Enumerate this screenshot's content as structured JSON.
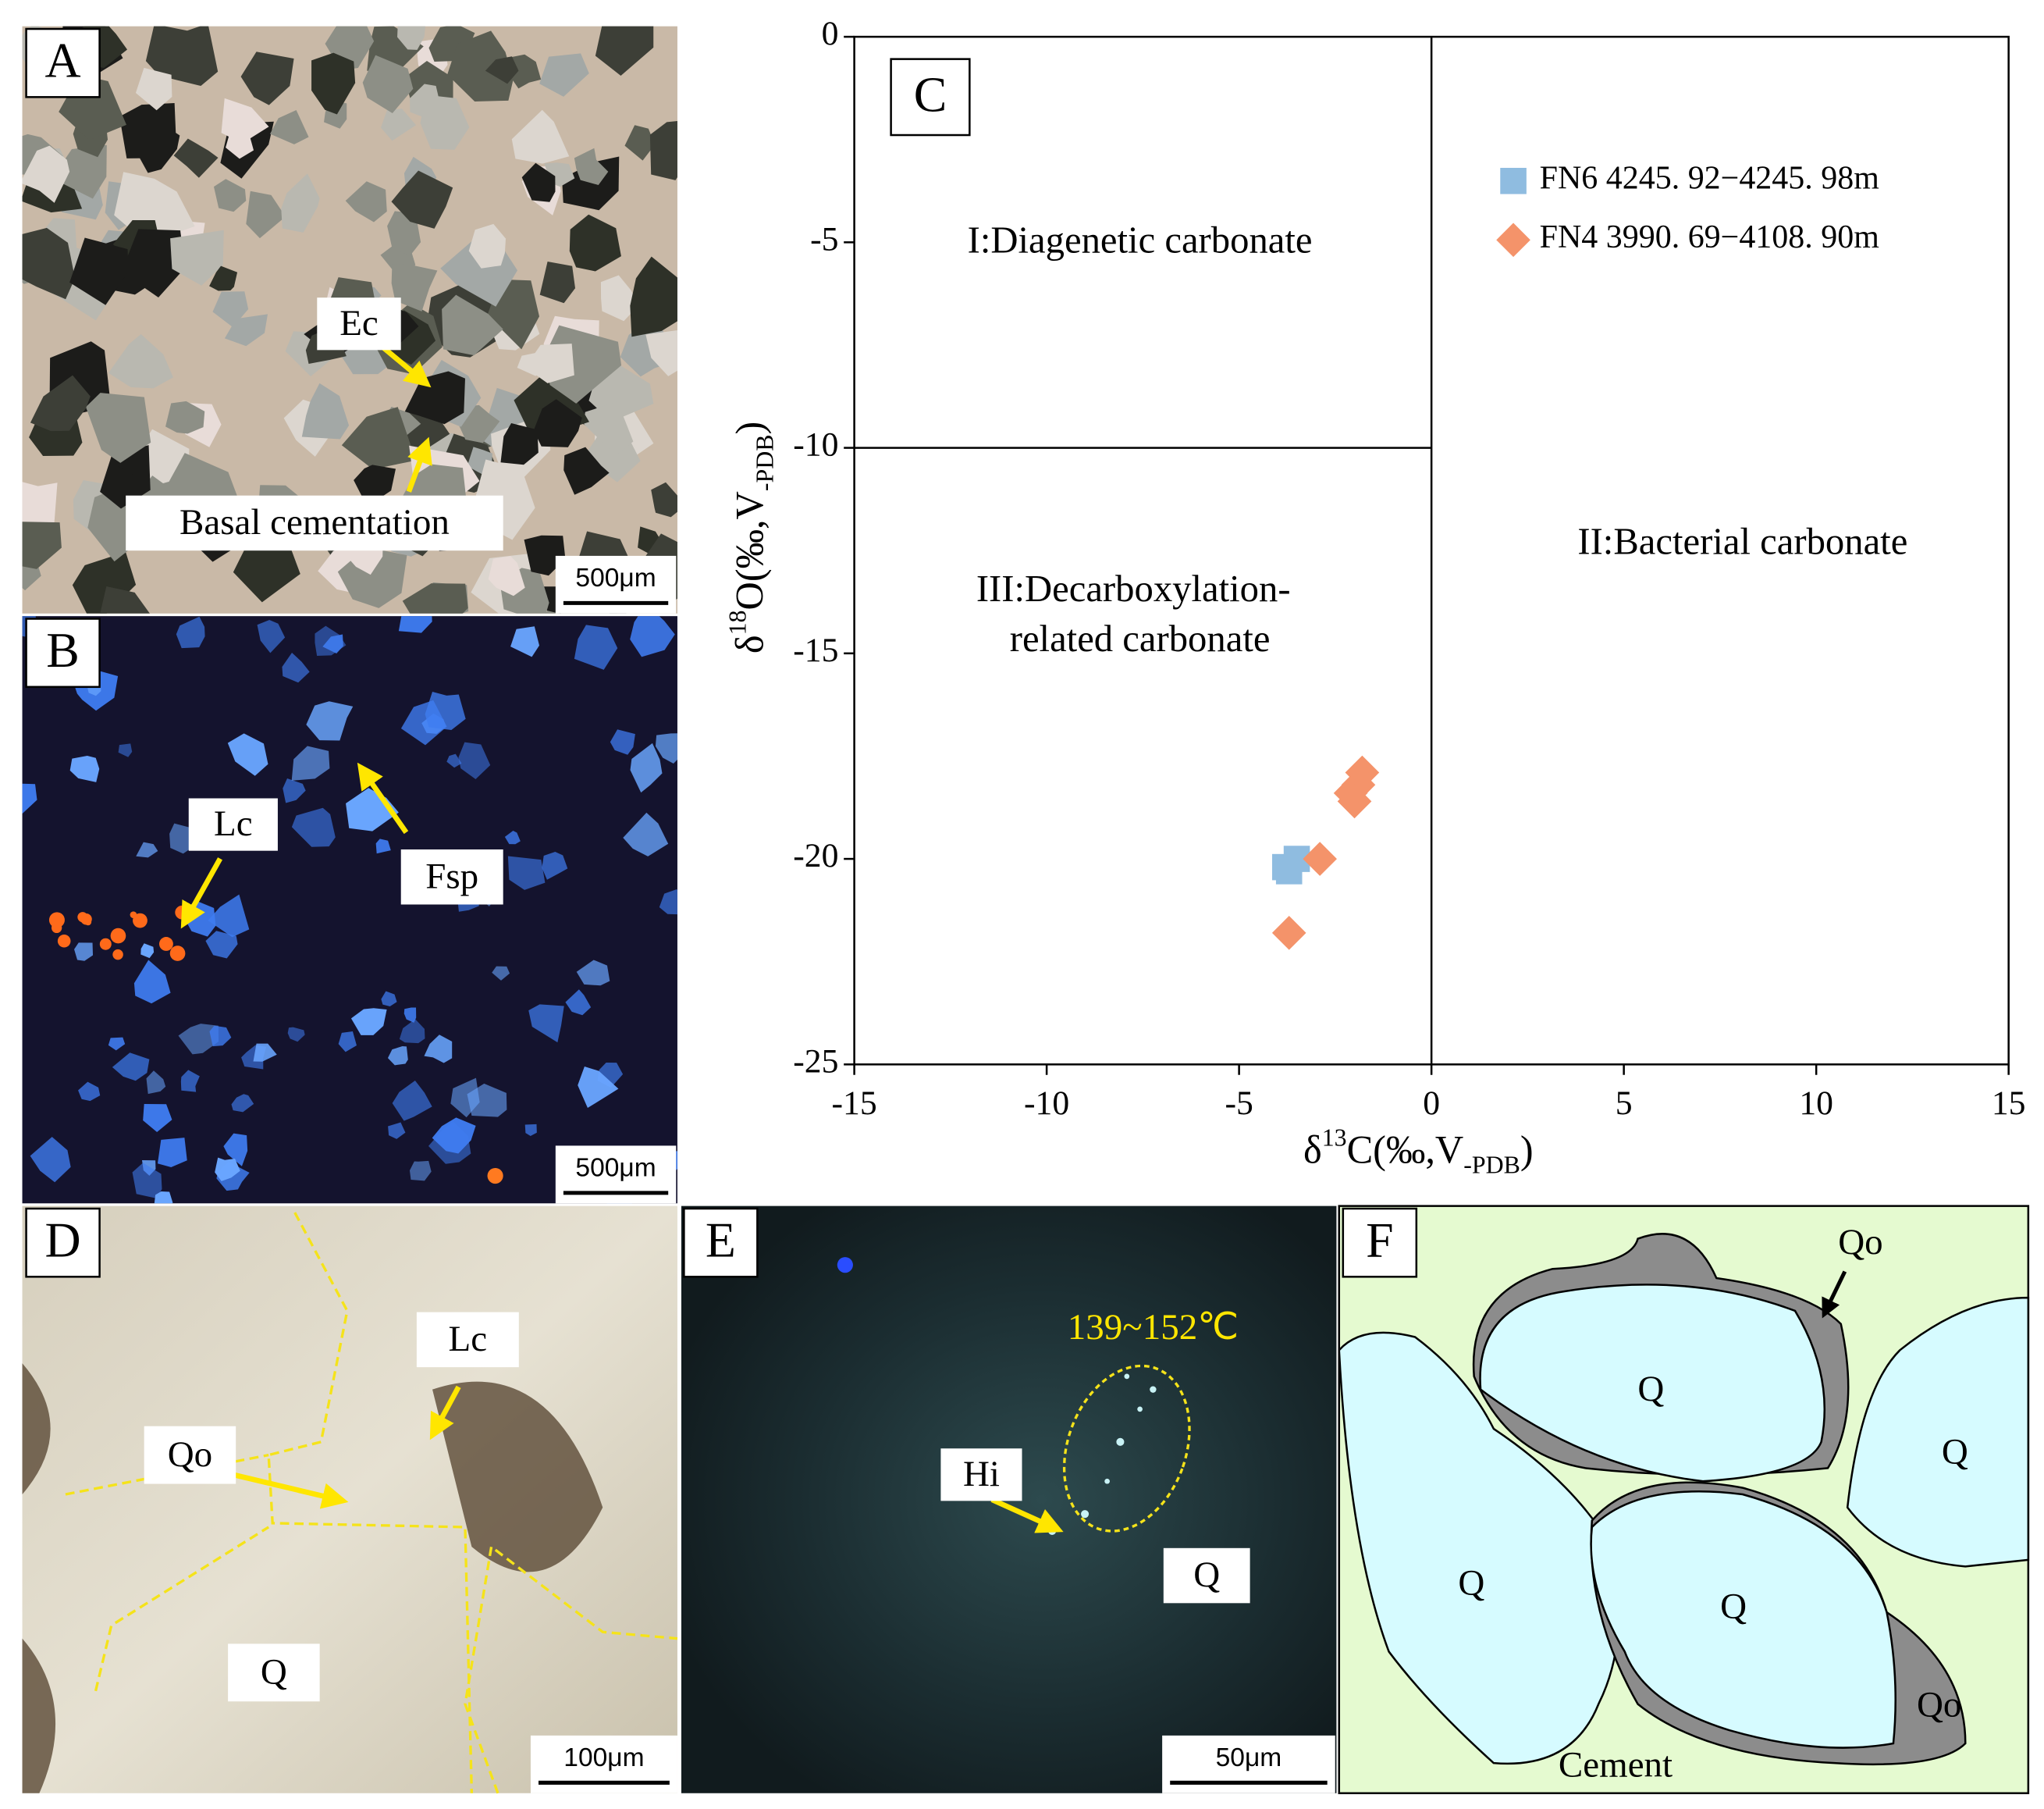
{
  "chart_data": {
    "type": "scatter",
    "panel_label": "C",
    "xlabel": [
      "δ",
      "13",
      "C(‰,V",
      "-PDB",
      ")"
    ],
    "ylabel": [
      "δ",
      "18",
      "O(‰,V",
      "-PDB",
      ")"
    ],
    "xlim": [
      -15,
      15
    ],
    "xticks": [
      -15,
      -10,
      -5,
      0,
      5,
      10,
      15
    ],
    "ylim": [
      -25,
      0
    ],
    "yticks": [
      0,
      -5,
      -10,
      -15,
      -20,
      -25
    ],
    "annotations": [
      "I:Diagenetic carbonate",
      "II:Bacterial carbonate",
      "III:Decarboxylation-",
      "related carbonate"
    ],
    "legend": "upper right",
    "series": [
      {
        "name": "FN6  4245. 92−4245. 98m",
        "color": "#8fbce0",
        "marker": "square",
        "x": [
          -3.8,
          -3.5,
          -3.7
        ],
        "values": [
          -20.2,
          -20.0,
          -20.3
        ]
      },
      {
        "name": "FN4  3990. 69−4108. 90m",
        "color": "#f4936a",
        "marker": "diamond",
        "x": [
          -1.8,
          -1.9,
          -2.1,
          -2.0,
          -2.9,
          -3.7
        ],
        "values": [
          -17.9,
          -18.2,
          -18.4,
          -18.6,
          -20.0,
          -21.8
        ]
      }
    ]
  },
  "panels": {
    "A": {
      "label": "A",
      "annotations": [
        "Ec",
        "Basal cementation"
      ],
      "scale_bar": "500μm"
    },
    "B": {
      "label": "B",
      "annotations": [
        "Lc",
        "Fsp"
      ],
      "scale_bar": "500μm"
    },
    "D": {
      "label": "D",
      "annotations": [
        "Lc",
        "Qo",
        "Q"
      ],
      "scale_bar": "100μm"
    },
    "E": {
      "label": "E",
      "annotations": [
        "139~152℃",
        "Hi",
        "Q"
      ],
      "scale_bar": "50μm"
    },
    "F": {
      "label": "F",
      "annotations": [
        "Qo",
        "Q",
        "Q",
        "Q",
        "Q",
        "Qo",
        "Cement"
      ]
    }
  }
}
